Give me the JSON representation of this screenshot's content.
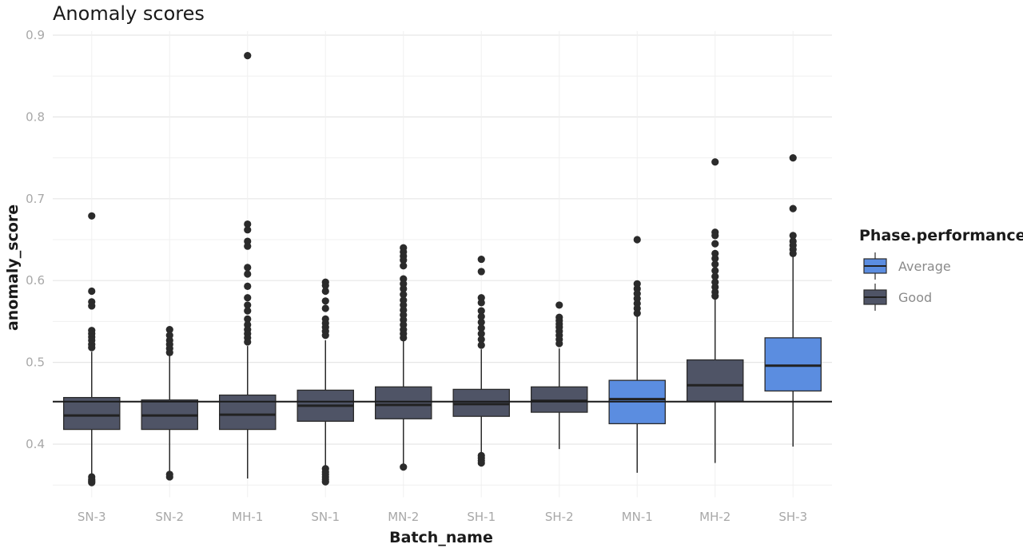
{
  "chart_data": {
    "type": "box",
    "title": "Anomaly scores",
    "xlabel": "Batch_name",
    "ylabel": "anomaly_score",
    "ylim": [
      0.335,
      0.905
    ],
    "yticks": [
      0.4,
      0.5,
      0.6,
      0.7,
      0.8,
      0.9
    ],
    "ytick_labels": [
      "0.4",
      "0.5",
      "0.6",
      "0.7",
      "0.8",
      "0.9"
    ],
    "grid": true,
    "reference_line": 0.452,
    "legend": {
      "title": "Phase.performance",
      "placement": "right",
      "entries": [
        {
          "label": "Average",
          "color": "#5b8de0"
        },
        {
          "label": "Good",
          "color": "#4f5466"
        }
      ]
    },
    "categories": [
      "SN-3",
      "SN-2",
      "MH-1",
      "SN-1",
      "MN-2",
      "SH-1",
      "SH-2",
      "MN-1",
      "MH-2",
      "SH-3"
    ],
    "boxes": [
      {
        "category": "SN-3",
        "group": "Good",
        "q1": 0.418,
        "median": 0.435,
        "q3": 0.457,
        "whisker_low": 0.362,
        "whisker_high": 0.513,
        "outliers": [
          0.679,
          0.587,
          0.574,
          0.569,
          0.539,
          0.535,
          0.531,
          0.527,
          0.522,
          0.518,
          0.36,
          0.357,
          0.355,
          0.353
        ]
      },
      {
        "category": "SN-2",
        "group": "Good",
        "q1": 0.418,
        "median": 0.435,
        "q3": 0.454,
        "whisker_low": 0.365,
        "whisker_high": 0.508,
        "outliers": [
          0.54,
          0.533,
          0.527,
          0.522,
          0.517,
          0.512,
          0.363,
          0.36
        ]
      },
      {
        "category": "MH-1",
        "group": "Good",
        "q1": 0.418,
        "median": 0.436,
        "q3": 0.46,
        "whisker_low": 0.358,
        "whisker_high": 0.52,
        "outliers": [
          0.875,
          0.669,
          0.662,
          0.648,
          0.642,
          0.616,
          0.608,
          0.593,
          0.579,
          0.57,
          0.563,
          0.553,
          0.546,
          0.54,
          0.535,
          0.53,
          0.525
        ]
      },
      {
        "category": "SN-1",
        "group": "Good",
        "q1": 0.428,
        "median": 0.447,
        "q3": 0.466,
        "whisker_low": 0.372,
        "whisker_high": 0.527,
        "outliers": [
          0.598,
          0.594,
          0.587,
          0.575,
          0.566,
          0.553,
          0.548,
          0.543,
          0.538,
          0.533,
          0.37,
          0.366,
          0.363,
          0.36,
          0.357,
          0.354
        ]
      },
      {
        "category": "MN-2",
        "group": "Good",
        "q1": 0.431,
        "median": 0.448,
        "q3": 0.47,
        "whisker_low": 0.375,
        "whisker_high": 0.528,
        "outliers": [
          0.64,
          0.635,
          0.63,
          0.625,
          0.618,
          0.602,
          0.596,
          0.59,
          0.583,
          0.576,
          0.57,
          0.564,
          0.558,
          0.552,
          0.546,
          0.54,
          0.535,
          0.53,
          0.372
        ]
      },
      {
        "category": "SH-1",
        "group": "Good",
        "q1": 0.434,
        "median": 0.449,
        "q3": 0.467,
        "whisker_low": 0.388,
        "whisker_high": 0.516,
        "outliers": [
          0.626,
          0.611,
          0.579,
          0.573,
          0.563,
          0.556,
          0.549,
          0.542,
          0.535,
          0.528,
          0.521,
          0.386,
          0.383,
          0.38,
          0.377
        ]
      },
      {
        "category": "SH-2",
        "group": "Good",
        "q1": 0.439,
        "median": 0.453,
        "q3": 0.47,
        "whisker_low": 0.394,
        "whisker_high": 0.517,
        "outliers": [
          0.57,
          0.555,
          0.551,
          0.547,
          0.543,
          0.538,
          0.533,
          0.528,
          0.523
        ]
      },
      {
        "category": "MN-1",
        "group": "Average",
        "q1": 0.425,
        "median": 0.455,
        "q3": 0.478,
        "whisker_low": 0.365,
        "whisker_high": 0.556,
        "outliers": [
          0.65,
          0.596,
          0.59,
          0.584,
          0.578,
          0.572,
          0.566,
          0.56
        ]
      },
      {
        "category": "MH-2",
        "group": "Good",
        "q1": 0.452,
        "median": 0.472,
        "q3": 0.503,
        "whisker_low": 0.377,
        "whisker_high": 0.58,
        "outliers": [
          0.745,
          0.659,
          0.655,
          0.645,
          0.633,
          0.627,
          0.62,
          0.612,
          0.605,
          0.598,
          0.592,
          0.586,
          0.581
        ]
      },
      {
        "category": "SH-3",
        "group": "Average",
        "q1": 0.465,
        "median": 0.496,
        "q3": 0.53,
        "whisker_low": 0.397,
        "whisker_high": 0.63,
        "outliers": [
          0.75,
          0.688,
          0.655,
          0.648,
          0.643,
          0.638,
          0.633
        ]
      }
    ]
  }
}
